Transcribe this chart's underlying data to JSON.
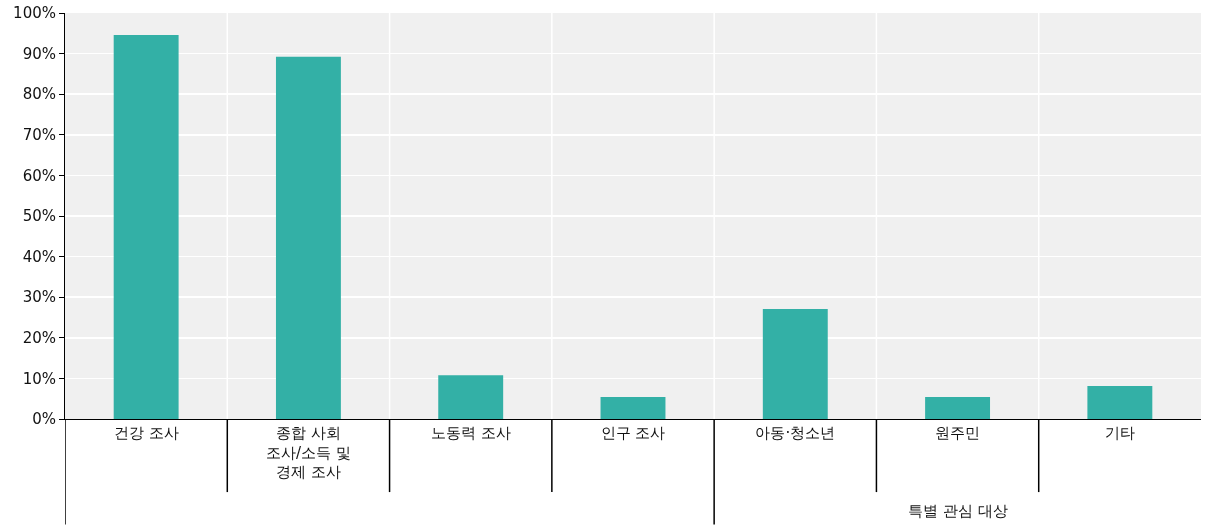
{
  "chart_data": {
    "type": "bar",
    "categories": [
      "건강 조사",
      "종합 사회\n조사/소득 및\n경제 조사",
      "노동력 조사",
      "인구 조사",
      "아동·청소년",
      "원주민",
      "기타"
    ],
    "values": [
      94.6,
      89.2,
      10.8,
      5.4,
      27.1,
      5.4,
      8.1
    ],
    "color": "#33b0a6",
    "ylim": [
      0,
      100
    ],
    "yticks": [
      {
        "value": 0,
        "label": "0%"
      },
      {
        "value": 10,
        "label": "10%"
      },
      {
        "value": 20,
        "label": "20%"
      },
      {
        "value": 30,
        "label": "30%"
      },
      {
        "value": 40,
        "label": "40%"
      },
      {
        "value": 50,
        "label": "50%"
      },
      {
        "value": 60,
        "label": "60%"
      },
      {
        "value": 70,
        "label": "70%"
      },
      {
        "value": 80,
        "label": "80%"
      },
      {
        "value": 90,
        "label": "90%"
      },
      {
        "value": 100,
        "label": "100%"
      }
    ],
    "grid": true,
    "annotations": [
      "특별 관심 대상"
    ]
  }
}
